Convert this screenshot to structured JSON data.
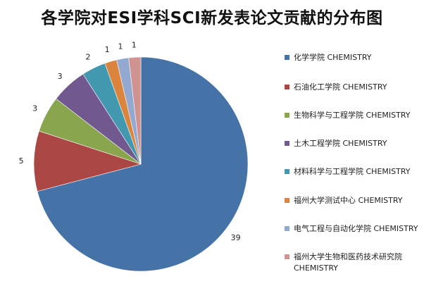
{
  "chart_data": {
    "type": "pie",
    "title": "各学院对ESI学科SCI新发表论文贡献的分布图",
    "categories": [
      "化学学院 CHEMISTRY",
      "石油化工学院 CHEMISTRY",
      "生物科学与工程学院 CHEMISTRY",
      "土木工程学院 CHEMISTRY",
      "材料科学与工程学院 CHEMISTRY",
      "福州大学测试中心 CHEMISTRY",
      "电气工程与自动化学院 CHEMISTRY",
      "福州大学生物和医药技术研究院 CHEMISTRY"
    ],
    "values": [
      39,
      5,
      3,
      3,
      2,
      1,
      1,
      1
    ],
    "colors": [
      "#4572A7",
      "#AA4643",
      "#89A54E",
      "#71588F",
      "#4198AF",
      "#DB843D",
      "#93A9CF",
      "#D19392"
    ],
    "legend_position": "right",
    "start_angle": "12 o'clock",
    "direction": "clockwise",
    "data_labels": "outside"
  }
}
